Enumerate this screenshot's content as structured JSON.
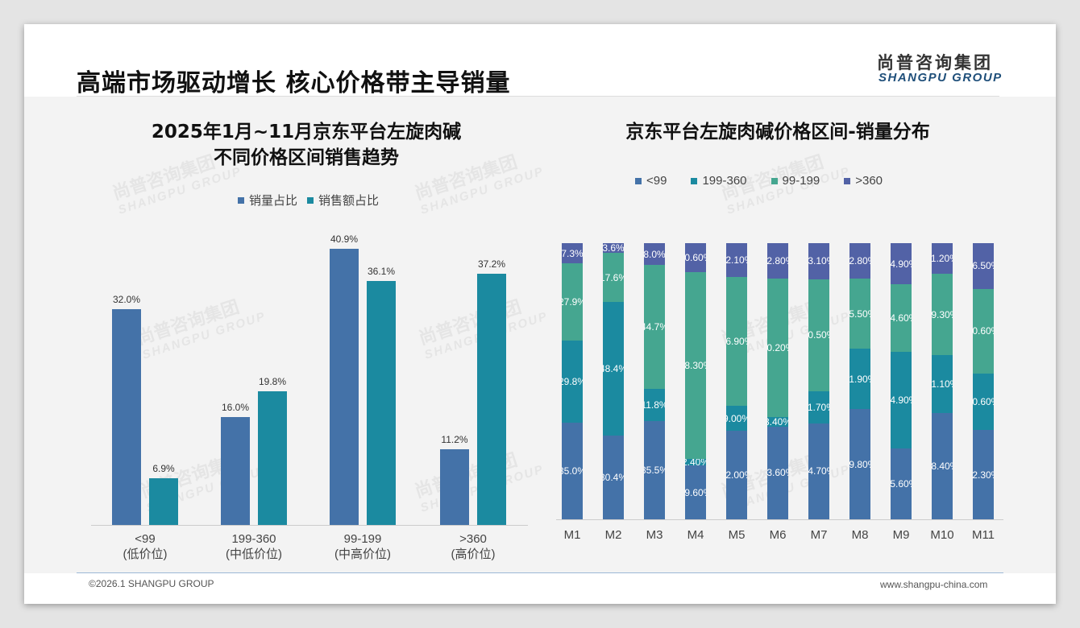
{
  "header": {
    "title": "高端市场驱动增长 核心价格带主导销量",
    "logo_cn": "尚普咨询集团",
    "logo_en": "SHANGPU GROUP"
  },
  "footer": {
    "copyright": "©2026.1 SHANGPU GROUP",
    "website": "www.shangpu-china.com"
  },
  "watermark": {
    "cn": "尚普咨询集团",
    "en": "SHANGPU GROUP"
  },
  "colors": {
    "blue": "#4472a8",
    "teal": "#1b8aa0",
    "green": "#45a690",
    "purple": "#5262a6"
  },
  "chart_data": [
    {
      "type": "bar",
      "title_line1": "2025年1月~11月京东平台左旋肉碱",
      "title_line2": "不同价格区间销售趋势",
      "categories": [
        "<99",
        "199-360",
        "99-199",
        ">360"
      ],
      "category_sub": [
        "(低价位)",
        "(中低价位)",
        "(中高价位)",
        "(高价位)"
      ],
      "series": [
        {
          "name": "销量占比",
          "values": [
            32.0,
            16.0,
            40.9,
            11.2
          ],
          "labels": [
            "32.0%",
            "16.0%",
            "40.9%",
            "11.2%"
          ]
        },
        {
          "name": "销售额占比",
          "values": [
            6.9,
            19.8,
            36.1,
            37.2
          ],
          "labels": [
            "6.9%",
            "19.8%",
            "36.1%",
            "37.2%"
          ]
        }
      ],
      "ylim": [
        0,
        45
      ],
      "unit": "%"
    },
    {
      "type": "bar",
      "stacked": true,
      "title": "京东平台左旋肉碱价格区间-销量分布",
      "categories": [
        "M1",
        "M2",
        "M3",
        "M4",
        "M5",
        "M6",
        "M7",
        "M8",
        "M9",
        "M10",
        "M11"
      ],
      "legend_order": [
        "<99",
        "199-360",
        "99-199",
        ">360"
      ],
      "series": [
        {
          "name": "<99",
          "values": [
            35.0,
            30.4,
            35.5,
            19.6,
            32.0,
            33.6,
            34.7,
            39.8,
            25.6,
            38.4,
            32.3
          ],
          "labels": [
            "35.0%",
            "30.4%",
            "35.5%",
            "19.60%",
            "32.00%",
            "33.60%",
            "34.70%",
            "39.80%",
            "25.60%",
            "38.40%",
            "32.30%"
          ]
        },
        {
          "name": "199-360",
          "values": [
            29.8,
            48.4,
            11.8,
            2.4,
            9.0,
            3.4,
            11.7,
            21.9,
            34.9,
            21.1,
            20.6
          ],
          "labels": [
            "29.8%",
            "48.4%",
            "11.8%",
            "2.40%",
            "9.00%",
            "3.40%",
            "11.70%",
            "21.90%",
            "34.90%",
            "21.10%",
            "20.60%"
          ]
        },
        {
          "name": "99-199",
          "values": [
            27.9,
            17.6,
            44.7,
            68.3,
            46.9,
            50.2,
            40.5,
            25.5,
            24.6,
            29.3,
            30.6
          ],
          "labels": [
            "27.9%",
            "17.6%",
            "44.7%",
            "68.30%",
            "46.90%",
            "50.20%",
            "40.50%",
            "25.50%",
            "24.60%",
            "29.30%",
            "30.60%"
          ]
        },
        {
          "name": ">360",
          "values": [
            7.3,
            3.6,
            8.0,
            10.6,
            12.1,
            12.8,
            13.1,
            12.8,
            14.9,
            11.2,
            16.5
          ],
          "labels": [
            "7.3%",
            "3.6%",
            "8.0%",
            "10.60%",
            "12.10%",
            "12.80%",
            "13.10%",
            "12.80%",
            "14.90%",
            "11.20%",
            "16.50%"
          ]
        }
      ],
      "ylim": [
        0,
        100
      ],
      "unit": "%"
    }
  ]
}
